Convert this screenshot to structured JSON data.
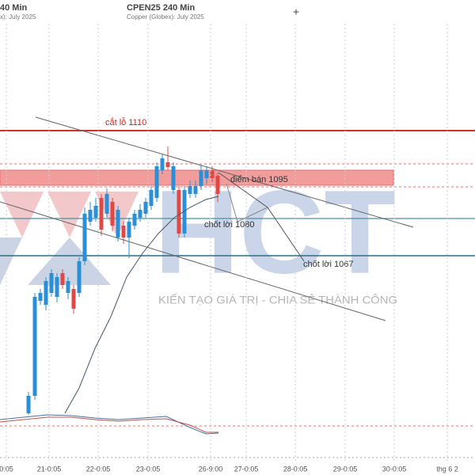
{
  "header": {
    "left_title": "40 Min",
    "left_subtitle": "x): July 2025",
    "title": "CPEN25 240 Min",
    "subtitle": "Copper (Globex): July 2025",
    "plus": "+"
  },
  "annotations": {
    "stop_loss": "cắt lỗ 1110",
    "sell_point": "điểm bán 1095",
    "take_profit_1": "chốt lời 1080",
    "take_profit_2": "chốt lời 1067"
  },
  "watermark": {
    "logo": "HCT",
    "tagline": "KIẾN TẠO GIÁ TRỊ - CHIA SẺ THÀNH CÔNG"
  },
  "x_axis": [
    "0:05",
    "21-0:05",
    "22-0:05",
    "23-0:05",
    "26-9:00",
    "27-0:05",
    "28-0:05",
    "29-0:05",
    "30-0:05",
    "thg 6 2"
  ]
}
